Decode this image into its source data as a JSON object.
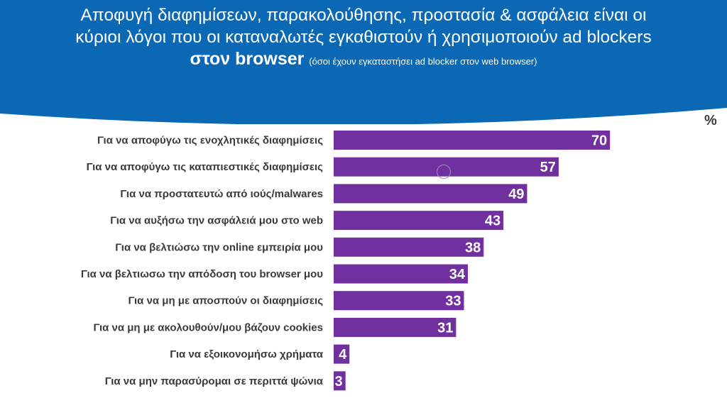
{
  "header": {
    "title_line1": "Αποφυγή διαφημίσεων, παρακολούθησης, προστασία & ασφάλεια είναι οι",
    "title_line2": "κύριοι λόγοι που οι καταναλωτές εγκαθιστούν ή χρησιμοποιούν ad blockers",
    "title_line3_bold": "στον browser",
    "title_note": "(όσοι έχουν εγκαταστήσει ad blocker στον web browser)"
  },
  "colors": {
    "header": "#0a68b4",
    "bar": "#7030a0"
  },
  "chart_data": {
    "type": "bar",
    "orientation": "horizontal",
    "unit": "%",
    "categories": [
      "Για να αποφύγω τις ενοχλητικές διαφημίσεις",
      "Για να αποφύγω τις καταπιεστικές διαφημίσεις",
      "Για να προστατευτώ από ιούς/malwares",
      "Για να αυξήσω την ασφάλειά μου στο web",
      "Για να βελτιώσω την online εμπειρία μου",
      "Για να βελτιωσω την απόδοση του browser μου",
      "Για να μη με αποσπούν οι διαφημίσεις",
      "Για να μη με ακολουθούν/μου βάζουν cookies",
      "Για να εξοικονομήσω χρήματα",
      "Για να μην παρασύρομαι σε περιττά ψώνια"
    ],
    "values": [
      70,
      57,
      49,
      43,
      38,
      34,
      33,
      31,
      4,
      3
    ],
    "xlim": [
      0,
      100
    ],
    "grid": false,
    "legend": "none"
  }
}
